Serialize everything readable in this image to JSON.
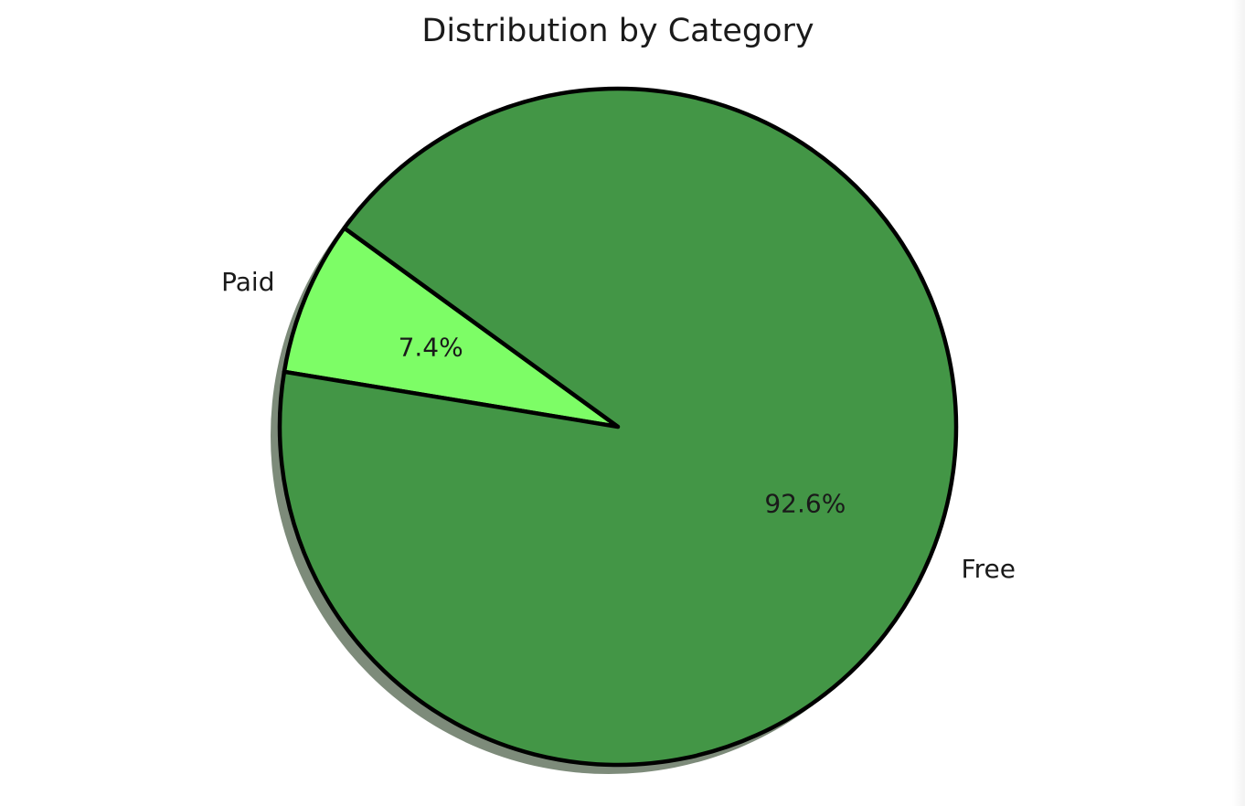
{
  "chart_data": {
    "type": "pie",
    "title": "Distribution by Category",
    "slices": [
      {
        "label": "Paid",
        "value": 7.4,
        "pct_label": "7.4%",
        "color": "#7dfd66"
      },
      {
        "label": "Free",
        "value": 92.6,
        "pct_label": "92.6%",
        "color": "#439646"
      }
    ],
    "start_angle_deg": 144,
    "direction": "counterclockwise",
    "shadow": true,
    "edge_color": "#000000",
    "shadow_color": "#7d8b7a"
  }
}
